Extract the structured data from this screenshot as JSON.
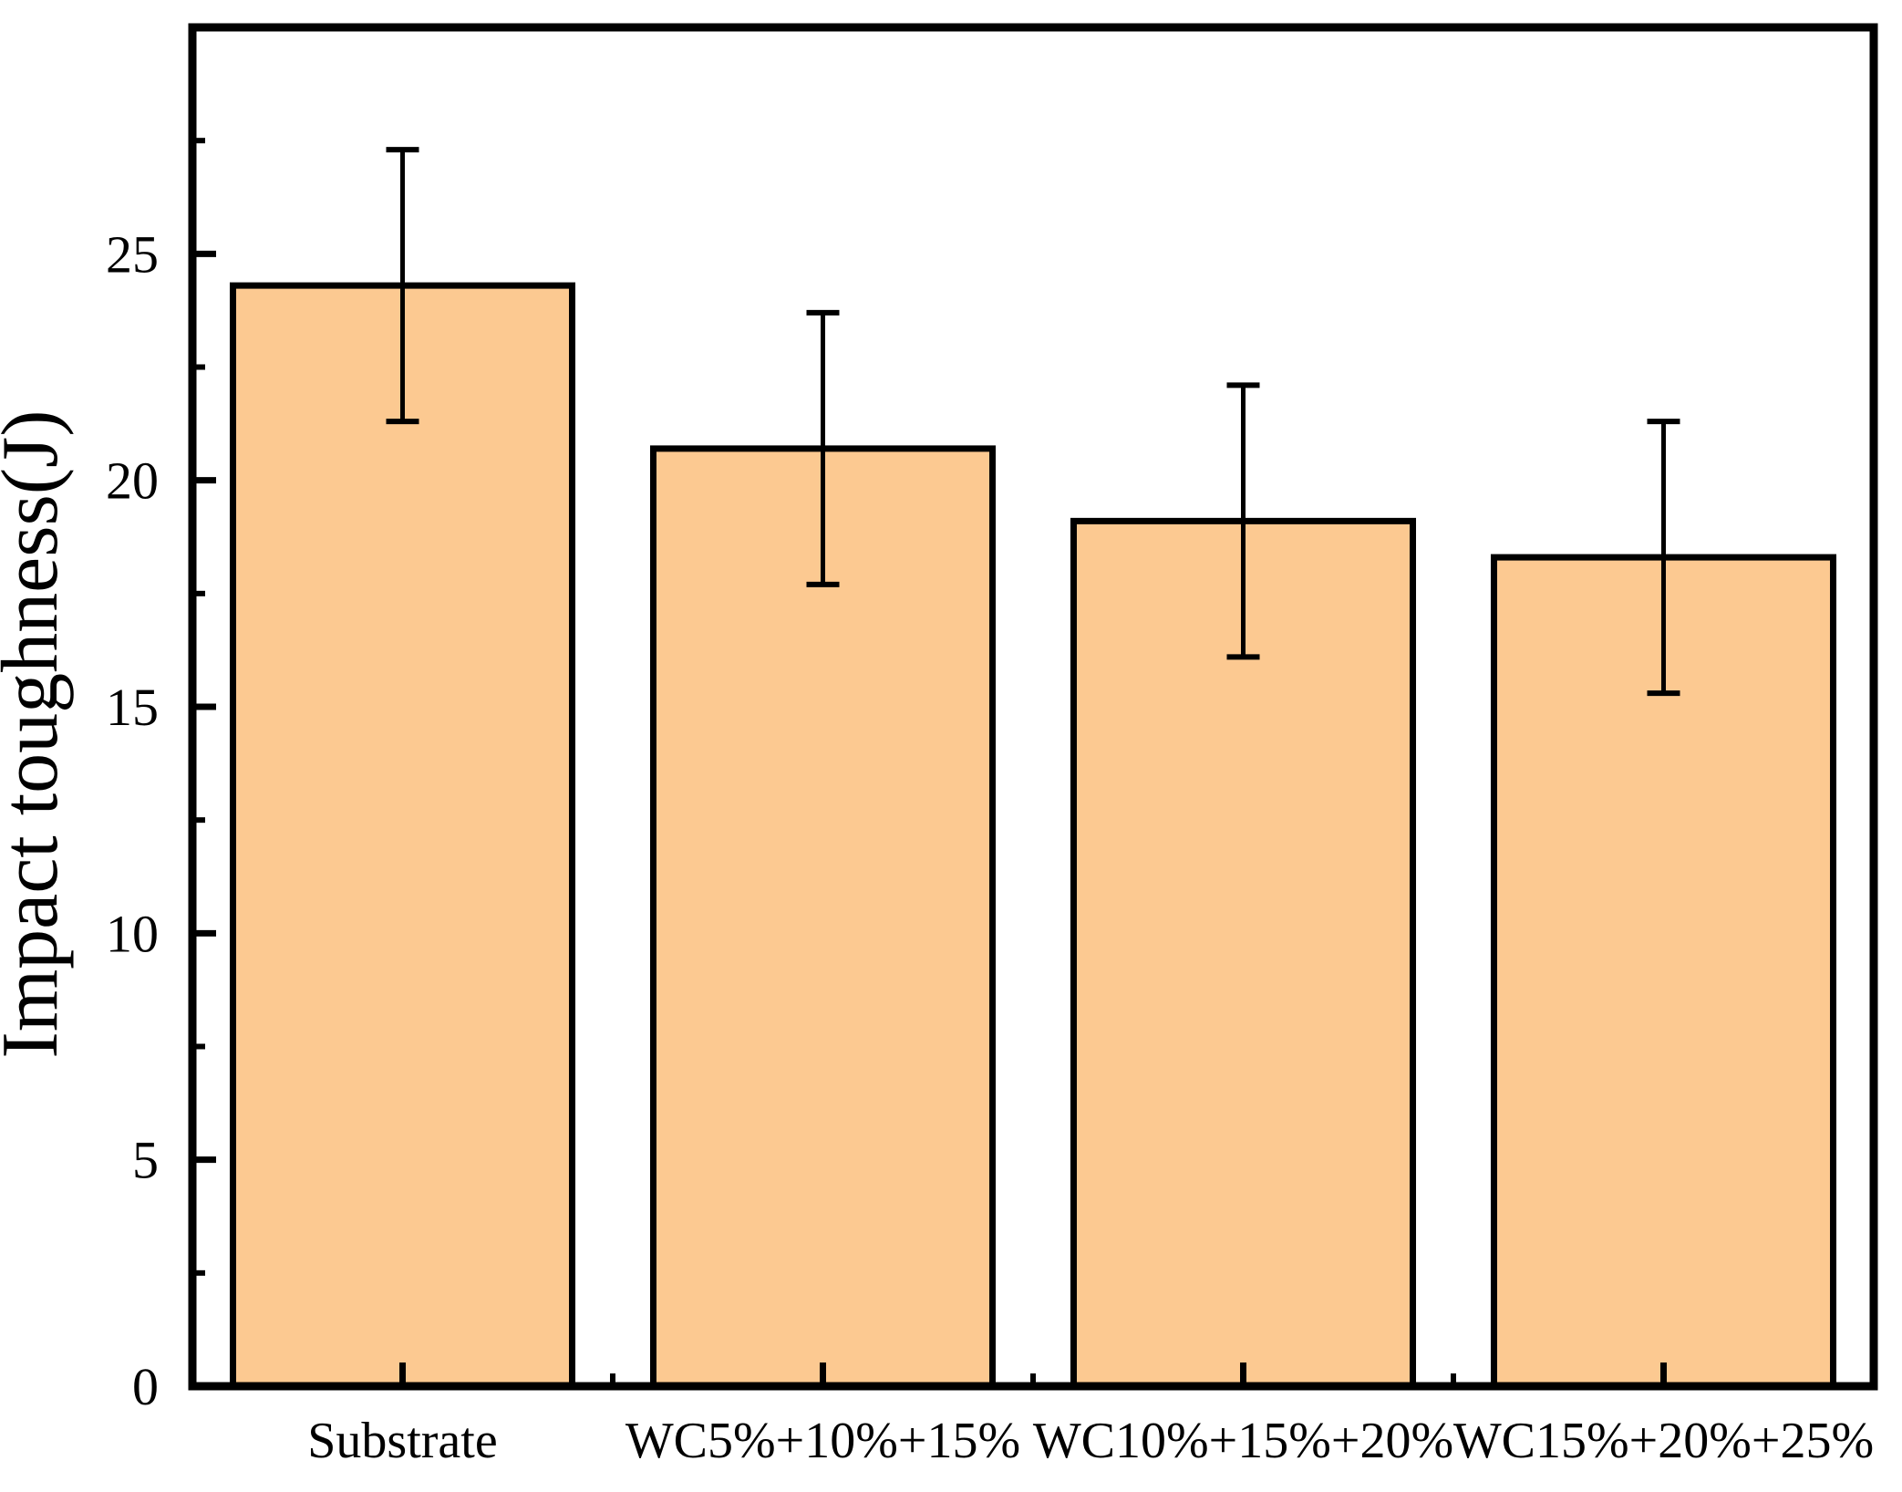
{
  "chart_data": {
    "type": "bar",
    "title": "",
    "xlabel": "",
    "ylabel": "Impact toughness(J)",
    "categories": [
      "Substrate",
      "WC5%+10%+15%",
      "WC10%+15%+20%",
      "WC15%+20%+25%"
    ],
    "values": [
      24.3,
      20.7,
      19.1,
      18.3
    ],
    "errors": [
      3.0,
      3.0,
      3.0,
      3.0
    ],
    "ylim": [
      0,
      30
    ],
    "ytick_interval": 5,
    "ytick_minor_interval": 2.5,
    "ytick_labels": [
      "0",
      "5",
      "10",
      "15",
      "20",
      "25"
    ],
    "grid": false,
    "legend": null,
    "ticks_direction": "in",
    "bar_width_fraction": 0.807,
    "bar_color": "#FCC991",
    "bar_edge_color": "#000000",
    "error_bar_color": "#000000",
    "axis_color": "#000000",
    "background_color": "#FFFFFF"
  }
}
